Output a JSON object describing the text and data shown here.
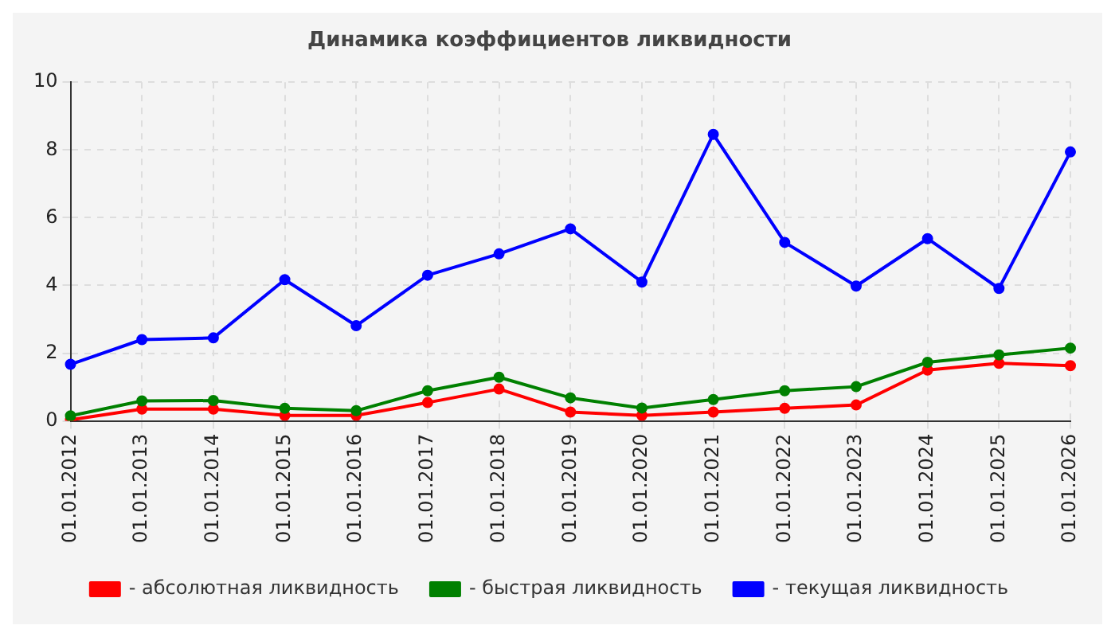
{
  "chart_data": {
    "type": "line",
    "title": "Динамика коэффициентов ликвидности",
    "categories": [
      "01.01.2012",
      "01.01.2013",
      "01.01.2014",
      "01.01.2015",
      "01.01.2016",
      "01.01.2017",
      "01.01.2018",
      "01.01.2019",
      "01.01.2020",
      "01.01.2021",
      "01.01.2022",
      "01.01.2023",
      "01.01.2024",
      "01.01.2025",
      "01.01.2026"
    ],
    "series": [
      {
        "name": "- абсолютная ликвидность",
        "color": "#ff0000",
        "values": [
          0.03,
          0.35,
          0.35,
          0.16,
          0.16,
          0.54,
          0.94,
          0.26,
          0.16,
          0.26,
          0.37,
          0.47,
          1.5,
          1.7,
          1.63
        ]
      },
      {
        "name": "- быстрая ликвидность",
        "color": "#008000",
        "values": [
          0.15,
          0.59,
          0.6,
          0.37,
          0.3,
          0.89,
          1.29,
          0.68,
          0.38,
          0.63,
          0.89,
          1.01,
          1.73,
          1.95,
          2.15
        ]
      },
      {
        "name": "- текущая ликвидность",
        "color": "#0000ff",
        "values": [
          1.67,
          2.4,
          2.45,
          4.17,
          2.81,
          4.3,
          4.93,
          5.67,
          4.1,
          8.46,
          5.27,
          3.98,
          5.38,
          3.91,
          7.94
        ]
      }
    ],
    "ylim": [
      0,
      10
    ],
    "yticks": [
      0,
      2,
      4,
      6,
      8,
      10
    ],
    "grid": true,
    "legend": "bottom",
    "marker": "circle",
    "line_style": "solid"
  }
}
